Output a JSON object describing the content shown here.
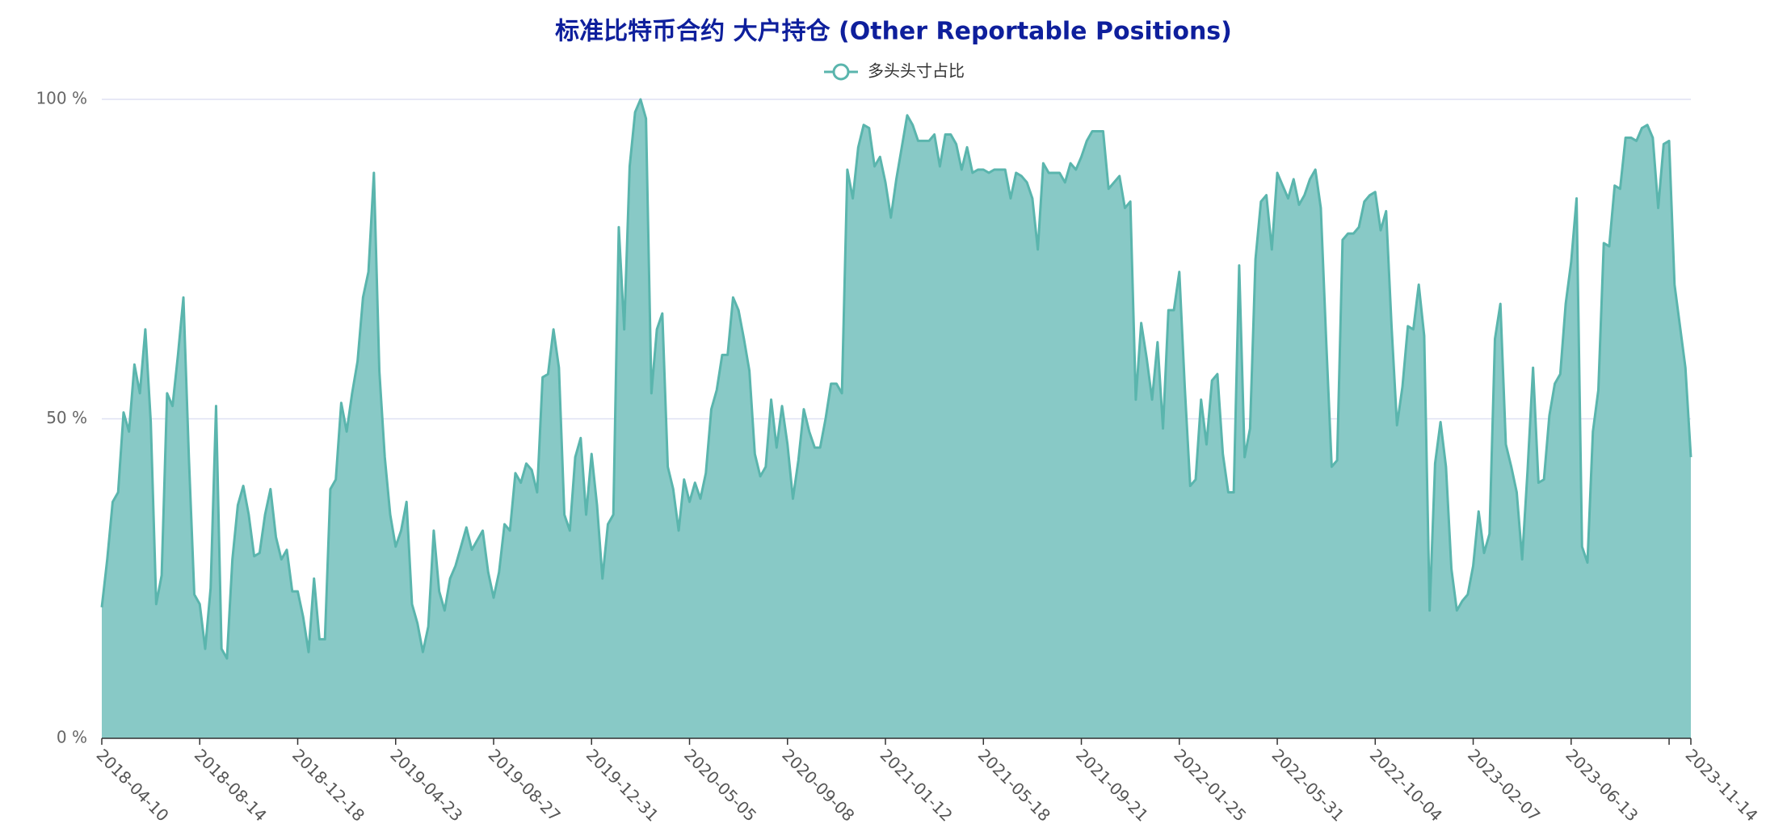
{
  "chart_data": {
    "type": "area",
    "title": "标准比特币合约 大户持仓 (Other Reportable Positions)",
    "legend": "top",
    "categories": [
      "2018-04-10",
      null,
      null,
      null,
      null,
      null,
      null,
      null,
      null,
      null,
      null,
      null,
      null,
      null,
      null,
      null,
      null,
      null,
      "2018-08-14",
      null,
      null,
      null,
      null,
      null,
      null,
      null,
      null,
      null,
      null,
      null,
      null,
      null,
      null,
      null,
      null,
      null,
      "2018-12-18",
      null,
      null,
      null,
      null,
      null,
      null,
      null,
      null,
      null,
      null,
      null,
      null,
      null,
      null,
      null,
      null,
      null,
      "2019-04-23",
      null,
      null,
      null,
      null,
      null,
      null,
      null,
      null,
      null,
      null,
      null,
      null,
      null,
      null,
      null,
      null,
      null,
      "2019-08-27",
      null,
      null,
      null,
      null,
      null,
      null,
      null,
      null,
      null,
      null,
      null,
      null,
      null,
      null,
      null,
      null,
      null,
      "2019-12-31",
      null,
      null,
      null,
      null,
      null,
      null,
      null,
      null,
      null,
      null,
      null,
      null,
      null,
      null,
      null,
      null,
      null,
      "2020-05-05",
      null,
      null,
      null,
      null,
      null,
      null,
      null,
      null,
      null,
      null,
      null,
      null,
      null,
      null,
      null,
      null,
      null,
      "2020-09-08",
      null,
      null,
      null,
      null,
      null,
      null,
      null,
      null,
      null,
      null,
      null,
      null,
      null,
      null,
      null,
      null,
      null,
      "2021-01-12",
      null,
      null,
      null,
      null,
      null,
      null,
      null,
      null,
      null,
      null,
      null,
      null,
      null,
      null,
      null,
      null,
      null,
      "2021-05-18",
      null,
      null,
      null,
      null,
      null,
      null,
      null,
      null,
      null,
      null,
      null,
      null,
      null,
      null,
      null,
      null,
      null,
      "2021-09-21",
      null,
      null,
      null,
      null,
      null,
      null,
      null,
      null,
      null,
      null,
      null,
      null,
      null,
      null,
      null,
      null,
      null,
      "2022-01-25",
      null,
      null,
      null,
      null,
      null,
      null,
      null,
      null,
      null,
      null,
      null,
      null,
      null,
      null,
      null,
      null,
      null,
      "2022-05-31",
      null,
      null,
      null,
      null,
      null,
      null,
      null,
      null,
      null,
      null,
      null,
      null,
      null,
      null,
      null,
      null,
      null,
      "2022-10-04",
      null,
      null,
      null,
      null,
      null,
      null,
      null,
      null,
      null,
      null,
      null,
      null,
      null,
      null,
      null,
      null,
      null,
      "2023-02-07",
      null,
      null,
      null,
      null,
      null,
      null,
      null,
      null,
      null,
      null,
      null,
      null,
      null,
      null,
      null,
      null,
      null,
      "2023-06-13",
      null,
      null,
      null,
      null,
      null,
      null,
      null,
      null,
      null,
      null,
      null,
      null,
      null,
      null,
      null,
      null,
      null,
      null,
      null,
      null,
      null,
      "2023-11-14"
    ],
    "series": [
      {
        "name": "多头头寸占比",
        "color": "#5ab5ad",
        "fill": "#88c9c6",
        "values": [
          20.5,
          28,
          37,
          38.5,
          51,
          48,
          58.5,
          54,
          64,
          49.5,
          21,
          25.5,
          54,
          52,
          60,
          69,
          44,
          22.5,
          21,
          14,
          23.5,
          52,
          14,
          12.5,
          28,
          36.5,
          39.5,
          35,
          28.5,
          29,
          35,
          39,
          31.5,
          28,
          29.5,
          23,
          23,
          19,
          13.5,
          25,
          15.5,
          15.5,
          39,
          40.5,
          52.5,
          48,
          54,
          59,
          69,
          73,
          88.5,
          57.5,
          44,
          35,
          30,
          32.5,
          37,
          21,
          18,
          13.5,
          17.5,
          32.5,
          23,
          20,
          25,
          27,
          30,
          33,
          29.5,
          31,
          32.5,
          26,
          22,
          26,
          33.5,
          32.5,
          41.5,
          40,
          43,
          42,
          38.5,
          56.5,
          57,
          64,
          58,
          35,
          32.5,
          44,
          47,
          35,
          44.5,
          36.5,
          25,
          33.5,
          35,
          80,
          64,
          89.5,
          98,
          100,
          97,
          54,
          64,
          66.5,
          42.5,
          39,
          32.5,
          40.5,
          37,
          40,
          37.5,
          41.5,
          51.5,
          54.5,
          60,
          60,
          69,
          67,
          62.5,
          57.5,
          44.5,
          41,
          42.5,
          53,
          45.5,
          52,
          46,
          37.5,
          43.5,
          51.5,
          48,
          45.5,
          45.5,
          50,
          55.5,
          55.5,
          54,
          89,
          84.5,
          92.5,
          96,
          95.5,
          89.5,
          91,
          87,
          81.5,
          87.5,
          92.5,
          97.5,
          96,
          93.5,
          93.5,
          93.5,
          94.5,
          89.5,
          94.5,
          94.5,
          93,
          89,
          92.5,
          88.5,
          89,
          89,
          88.5,
          89,
          89,
          89,
          84.5,
          88.5,
          88,
          87,
          84.5,
          76.5,
          90,
          88.5,
          88.5,
          88.5,
          87,
          90,
          89,
          91,
          93.5,
          95,
          95,
          95,
          86,
          87,
          88,
          83,
          84,
          53,
          65,
          59.5,
          53,
          62,
          48.5,
          67,
          67,
          73,
          55,
          39.5,
          40.5,
          53,
          46,
          56,
          57,
          44.5,
          38.5,
          38.5,
          74,
          44,
          48.5,
          75,
          84,
          85,
          76.5,
          88.5,
          86.5,
          84.5,
          87.5,
          83.5,
          85,
          87.5,
          89,
          83,
          62,
          42.5,
          43.5,
          78,
          79,
          79,
          80,
          84,
          85,
          85.5,
          79.5,
          82.5,
          64.5,
          49,
          55,
          64.5,
          64,
          71,
          63,
          20,
          43,
          49.5,
          42.5,
          26.5,
          20,
          21.5,
          22.5,
          27,
          35.5,
          29,
          32,
          62.5,
          68,
          46,
          42.5,
          38.5,
          28,
          42,
          58,
          40,
          40.5,
          50.5,
          55.5,
          57,
          68,
          74.5,
          84.5,
          30,
          27.5,
          48,
          54.5,
          77.5,
          77,
          86.5,
          86,
          94,
          94,
          93.5,
          95.5,
          96,
          94,
          83,
          93,
          93.5,
          71,
          64.5,
          58,
          44
        ]
      }
    ],
    "ylim": [
      0,
      100
    ],
    "yticks": [
      {
        "value": 0,
        "label": "0 %"
      },
      {
        "value": 50,
        "label": "50 %"
      },
      {
        "value": 100,
        "label": "100 %"
      }
    ],
    "grid": true
  }
}
